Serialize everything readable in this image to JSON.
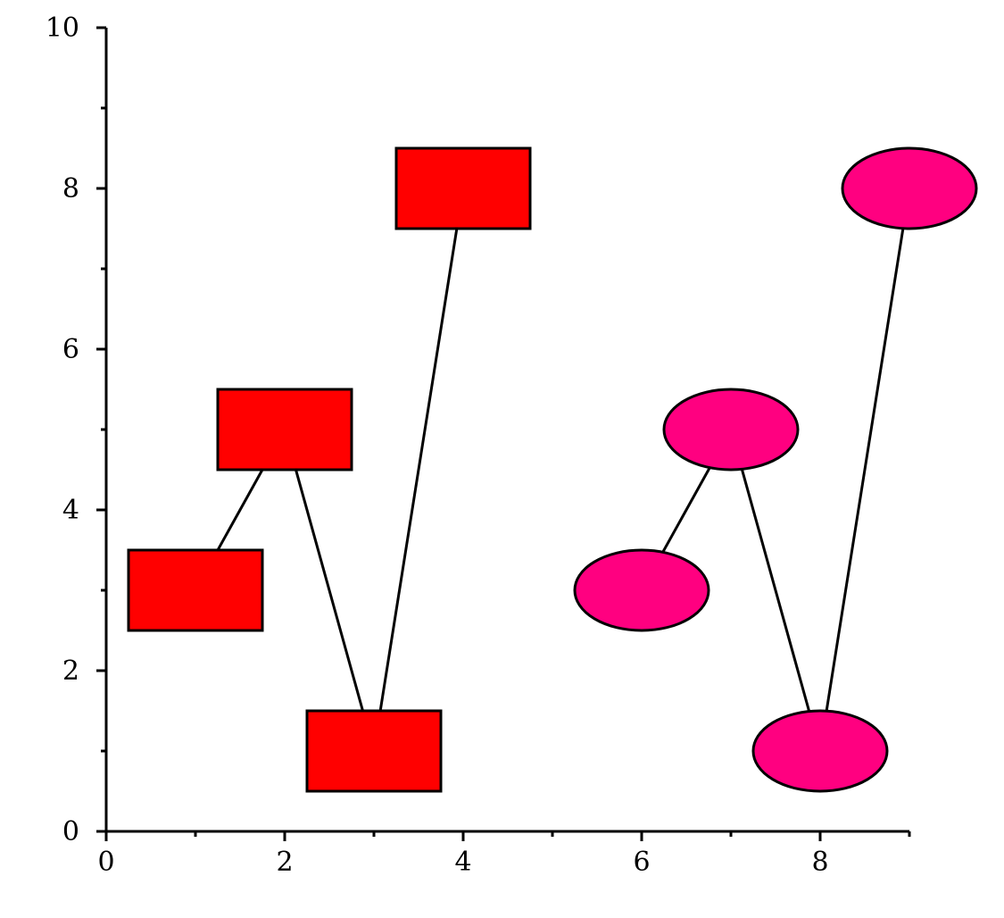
{
  "chart_data": {
    "type": "line",
    "title": "",
    "xlabel": "",
    "ylabel": "",
    "xlim": [
      0,
      9
    ],
    "ylim": [
      0,
      10
    ],
    "x_major_ticks": [
      0,
      2,
      4,
      6,
      8
    ],
    "x_minor_ticks": [
      1,
      3,
      5,
      7,
      9
    ],
    "y_major_ticks": [
      0,
      2,
      4,
      6,
      8,
      10
    ],
    "y_minor_ticks": [
      1,
      3,
      5,
      7,
      9
    ],
    "x_tick_labels": [
      "0",
      "2",
      "4",
      "6",
      "8"
    ],
    "y_tick_labels": [
      "0",
      "2",
      "4",
      "6",
      "8",
      "10"
    ],
    "grid": false,
    "legend": "none",
    "series": [
      {
        "marker": "rectangle",
        "color": "#ff0000",
        "points": [
          {
            "x": 1,
            "y": 3
          },
          {
            "x": 2,
            "y": 5
          },
          {
            "x": 3,
            "y": 1
          },
          {
            "x": 4,
            "y": 8
          }
        ]
      },
      {
        "marker": "ellipse",
        "color": "#ff0080",
        "points": [
          {
            "x": 6,
            "y": 3
          },
          {
            "x": 7,
            "y": 5
          },
          {
            "x": 8,
            "y": 1
          },
          {
            "x": 9,
            "y": 8
          }
        ]
      }
    ]
  }
}
